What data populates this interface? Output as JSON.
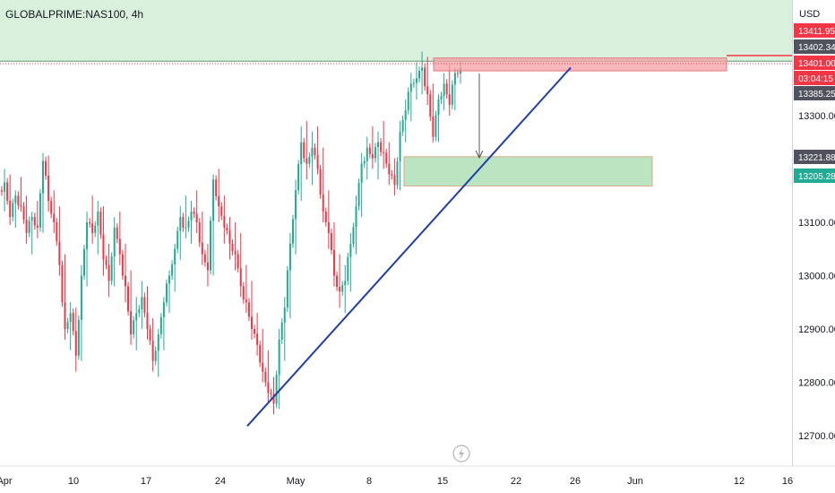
{
  "header": {
    "symbol_title": "GLOBALPRIME:NAS100, 4h",
    "currency": "USD"
  },
  "price_tags": [
    {
      "label": "13411.95",
      "color": "#f23645"
    },
    {
      "label": "13402.34",
      "color": "#50535e"
    },
    {
      "label": "13401.00",
      "color": "#f23645"
    },
    {
      "label": "03:04:15",
      "color": "#f23645"
    },
    {
      "label": "13385.25",
      "color": "#50535e"
    },
    {
      "label": "13221.88",
      "color": "#50535e"
    },
    {
      "label": "13205.28",
      "color": "#22ab94"
    }
  ],
  "footer": {
    "icon": "lightning-icon"
  },
  "colors": {
    "up": "#22ab94",
    "down": "#f23645",
    "trendline": "#1e3ea8",
    "supply_zone": "#f7a1a6",
    "demand_zone": "#a9deb0",
    "top_band": "#d8f0dc"
  },
  "chart_data": {
    "type": "candlestick",
    "symbol": "GLOBALPRIME:NAS100",
    "timeframe": "4h",
    "y_axis": {
      "ticks": [
        "13300.00",
        "13100.00",
        "13000.00",
        "12900.00",
        "12800.00",
        "12700.00"
      ],
      "ylim": [
        12670,
        13460
      ],
      "scale": "linear",
      "position": "right"
    },
    "x_axis": {
      "ticks": [
        "Apr",
        "10",
        "17",
        "24",
        "May",
        "8",
        "15",
        "22",
        "26",
        "Jun",
        "12",
        "16"
      ]
    },
    "price_path": [
      [
        13160,
        13200,
        13120,
        13175
      ],
      [
        13175,
        13190,
        13095,
        13110
      ],
      [
        13110,
        13160,
        13090,
        13150
      ],
      [
        13150,
        13185,
        13120,
        13130
      ],
      [
        13130,
        13150,
        13060,
        13080
      ],
      [
        13080,
        13120,
        13040,
        13110
      ],
      [
        13110,
        13140,
        13070,
        13090
      ],
      [
        13090,
        13230,
        13080,
        13215
      ],
      [
        13215,
        13225,
        13120,
        13140
      ],
      [
        13140,
        13160,
        13080,
        13100
      ],
      [
        13100,
        13130,
        13000,
        13020
      ],
      [
        13020,
        13040,
        12880,
        12900
      ],
      [
        12900,
        12950,
        12860,
        12930
      ],
      [
        12930,
        12940,
        12820,
        12850
      ],
      [
        12850,
        13020,
        12840,
        13000
      ],
      [
        13000,
        13120,
        12980,
        13100
      ],
      [
        13100,
        13150,
        13060,
        13080
      ],
      [
        13080,
        13140,
        13040,
        13120
      ],
      [
        13120,
        13130,
        13000,
        13030
      ],
      [
        13030,
        13060,
        12960,
        12990
      ],
      [
        12990,
        13110,
        12980,
        13090
      ],
      [
        13090,
        13120,
        13020,
        13040
      ],
      [
        13040,
        13060,
        12950,
        12980
      ],
      [
        12980,
        13010,
        12870,
        12890
      ],
      [
        12890,
        12960,
        12860,
        12930
      ],
      [
        12930,
        12990,
        12900,
        12960
      ],
      [
        12960,
        12980,
        12880,
        12900
      ],
      [
        12900,
        12920,
        12820,
        12840
      ],
      [
        12840,
        12900,
        12810,
        12890
      ],
      [
        12890,
        12960,
        12860,
        12950
      ],
      [
        12950,
        13010,
        12930,
        13000
      ],
      [
        13000,
        13060,
        12970,
        13050
      ],
      [
        13050,
        13130,
        13030,
        13110
      ],
      [
        13110,
        13150,
        13070,
        13090
      ],
      [
        13090,
        13140,
        13060,
        13120
      ],
      [
        13120,
        13160,
        13080,
        13100
      ],
      [
        13100,
        13120,
        13020,
        13040
      ],
      [
        13040,
        13060,
        12980,
        13010
      ],
      [
        13010,
        13190,
        13000,
        13180
      ],
      [
        13180,
        13200,
        13100,
        13130
      ],
      [
        13130,
        13150,
        13060,
        13090
      ],
      [
        13090,
        13110,
        13030,
        13060
      ],
      [
        13060,
        13100,
        13010,
        13040
      ],
      [
        13040,
        13080,
        12960,
        12980
      ],
      [
        12980,
        13020,
        12930,
        12950
      ],
      [
        12950,
        12990,
        12880,
        12900
      ],
      [
        12900,
        12930,
        12850,
        12870
      ],
      [
        12870,
        12900,
        12800,
        12820
      ],
      [
        12820,
        12860,
        12760,
        12780
      ],
      [
        12780,
        12810,
        12740,
        12760
      ],
      [
        12760,
        12900,
        12750,
        12880
      ],
      [
        12880,
        12960,
        12840,
        12940
      ],
      [
        12940,
        13080,
        12920,
        13060
      ],
      [
        13060,
        13180,
        13040,
        13160
      ],
      [
        13160,
        13280,
        13140,
        13250
      ],
      [
        13250,
        13290,
        13180,
        13210
      ],
      [
        13210,
        13270,
        13170,
        13240
      ],
      [
        13240,
        13280,
        13190,
        13200
      ],
      [
        13200,
        13240,
        13100,
        13120
      ],
      [
        13120,
        13160,
        13050,
        13080
      ],
      [
        13080,
        13100,
        12980,
        13000
      ],
      [
        13000,
        13040,
        12940,
        12970
      ],
      [
        12970,
        13020,
        12930,
        12990
      ],
      [
        12990,
        13080,
        12970,
        13060
      ],
      [
        13060,
        13150,
        13040,
        13130
      ],
      [
        13130,
        13230,
        13110,
        13210
      ],
      [
        13210,
        13260,
        13180,
        13240
      ],
      [
        13240,
        13280,
        13200,
        13220
      ],
      [
        13220,
        13270,
        13180,
        13250
      ],
      [
        13250,
        13290,
        13200,
        13230
      ],
      [
        13230,
        13250,
        13170,
        13190
      ],
      [
        13190,
        13220,
        13150,
        13170
      ],
      [
        13170,
        13290,
        13160,
        13270
      ],
      [
        13270,
        13330,
        13250,
        13310
      ],
      [
        13310,
        13380,
        13290,
        13360
      ],
      [
        13360,
        13400,
        13330,
        13370
      ],
      [
        13370,
        13420,
        13340,
        13390
      ],
      [
        13390,
        13410,
        13320,
        13340
      ],
      [
        13340,
        13360,
        13250,
        13260
      ],
      [
        13260,
        13340,
        13250,
        13330
      ],
      [
        13330,
        13380,
        13310,
        13360
      ],
      [
        13360,
        13395,
        13300,
        13320
      ],
      [
        13320,
        13390,
        13310,
        13380
      ],
      [
        13380,
        13402,
        13360,
        13390
      ]
    ],
    "annotations": [
      {
        "kind": "zone",
        "label": "supply",
        "y_top": 13408,
        "y_bottom": 13384
      },
      {
        "kind": "zone",
        "label": "demand",
        "y_top": 13223,
        "y_bottom": 13168
      },
      {
        "kind": "trendline",
        "from_price": 12718,
        "to_price": 13390
      },
      {
        "kind": "arrow",
        "direction": "down"
      },
      {
        "kind": "band",
        "y_top": 13460,
        "y_bottom": 13402
      }
    ],
    "title": "",
    "xlabel": "",
    "ylabel": "",
    "grid": false,
    "legend": "none"
  }
}
